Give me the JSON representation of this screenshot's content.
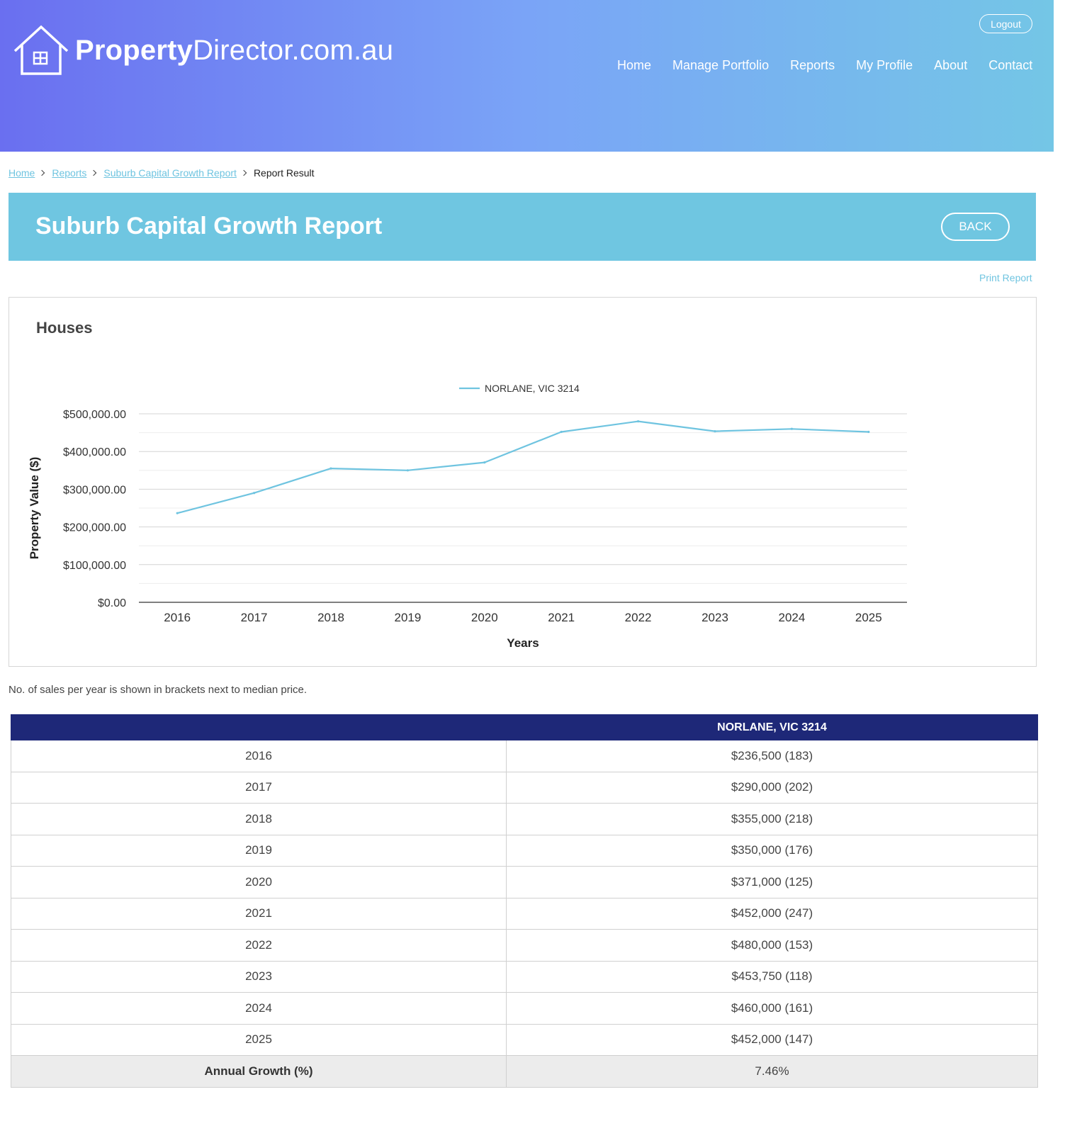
{
  "header": {
    "logo_bold": "Property",
    "logo_rest": "Director.com.au",
    "logout_label": "Logout",
    "nav": [
      "Home",
      "Manage Portfolio",
      "Reports",
      "My Profile",
      "About",
      "Contact"
    ]
  },
  "breadcrumb": {
    "items": [
      "Home",
      "Reports",
      "Suburb Capital Growth Report"
    ],
    "current": "Report Result"
  },
  "report": {
    "title": "Suburb Capital Growth Report",
    "back_label": "BACK",
    "print_label": "Print Report",
    "section_title": "Houses",
    "note": "No. of sales per year is shown in brackets next to median price."
  },
  "chart_data": {
    "type": "line",
    "x": [
      "2016",
      "2017",
      "2018",
      "2019",
      "2020",
      "2021",
      "2022",
      "2023",
      "2024",
      "2025"
    ],
    "series": [
      {
        "name": "NORLANE, VIC 3214",
        "values": [
          236500,
          290000,
          355000,
          350000,
          371000,
          452000,
          480000,
          453750,
          460000,
          452000
        ]
      }
    ],
    "xlabel": "Years",
    "ylabel": "Property Value ($)",
    "yticks": [
      "$0.00",
      "$100,000.00",
      "$200,000.00",
      "$300,000.00",
      "$400,000.00",
      "$500,000.00"
    ],
    "ylim": [
      0,
      500000
    ],
    "grid": true,
    "legend_position": "top-center",
    "line_color": "#6fc4e0"
  },
  "table": {
    "column_header": "NORLANE, VIC 3214",
    "rows": [
      {
        "year": "2016",
        "value": "$236,500 (183)"
      },
      {
        "year": "2017",
        "value": "$290,000 (202)"
      },
      {
        "year": "2018",
        "value": "$355,000 (218)"
      },
      {
        "year": "2019",
        "value": "$350,000 (176)"
      },
      {
        "year": "2020",
        "value": "$371,000 (125)"
      },
      {
        "year": "2021",
        "value": "$452,000 (247)"
      },
      {
        "year": "2022",
        "value": "$480,000 (153)"
      },
      {
        "year": "2023",
        "value": "$453,750 (118)"
      },
      {
        "year": "2024",
        "value": "$460,000 (161)"
      },
      {
        "year": "2025",
        "value": "$452,000 (147)"
      }
    ],
    "total_label": "Annual Growth (%)",
    "total_value": "7.46%"
  }
}
